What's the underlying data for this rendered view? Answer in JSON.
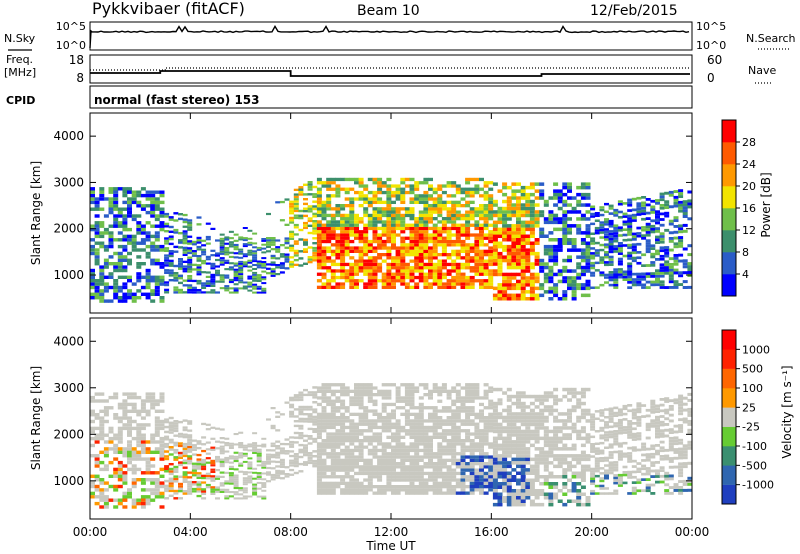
{
  "header": {
    "station": "Pykkvibaer (fitACF)",
    "beam": "Beam 10",
    "date": "12/Feb/2015"
  },
  "panels": {
    "nsky": {
      "left_label": "N.Sky",
      "right_label": "N.Search",
      "left_ticks": [
        "10^5",
        "10^0"
      ],
      "right_ticks": [
        "10^5",
        "10^0"
      ]
    },
    "freq": {
      "left_label_1": "Freq.",
      "left_label_2": "[MHz]",
      "left_ticks": [
        "18",
        "8"
      ],
      "right_ticks": [
        "60",
        "0"
      ],
      "right_label": "Nave"
    },
    "cpid": {
      "label": "CPID",
      "mode": "normal (fast stereo) 153"
    }
  },
  "chart_data": [
    {
      "type": "heatmap",
      "name": "power",
      "ylabel": "Slant Range [km]",
      "xlabel": "",
      "xlim": [
        0,
        24
      ],
      "ylim": [
        180,
        4500
      ],
      "y_ticks": [
        1000,
        2000,
        3000,
        4000
      ],
      "x_ticks": [
        "00:00",
        "04:00",
        "08:00",
        "12:00",
        "16:00",
        "20:00",
        "00:00"
      ],
      "colorbar": {
        "label": "Power [dB]",
        "ticks": [
          "4",
          "8",
          "12",
          "16",
          "20",
          "24",
          "28"
        ],
        "colors": [
          "#0000ff",
          "#2a5cc8",
          "#3c8f6c",
          "#6fbf4a",
          "#f2e400",
          "#ff9900",
          "#ff5a00",
          "#ff0000"
        ]
      }
    },
    {
      "type": "heatmap",
      "name": "velocity",
      "ylabel": "Slant Range [km]",
      "xlabel": "Time UT",
      "xlim": [
        0,
        24
      ],
      "ylim": [
        180,
        4500
      ],
      "y_ticks": [
        1000,
        2000,
        3000,
        4000
      ],
      "x_ticks": [
        "00:00",
        "04:00",
        "08:00",
        "12:00",
        "16:00",
        "20:00",
        "00:00"
      ],
      "colorbar": {
        "label": "Velocity [m s⁻¹]",
        "ticks": [
          "1000",
          "500",
          "100",
          "25",
          "-25",
          "-100",
          "-500",
          "-1000"
        ],
        "colors": [
          "#1f3fbf",
          "#2f66b0",
          "#3a8f70",
          "#66cc33",
          "#c8c8c0",
          "#ff9900",
          "#ff6600",
          "#ff2200",
          "#ff0000"
        ]
      }
    }
  ],
  "colors": {
    "background": "#ffffff",
    "axis": "#000000",
    "ground_scatter": "#c8c8c0"
  }
}
